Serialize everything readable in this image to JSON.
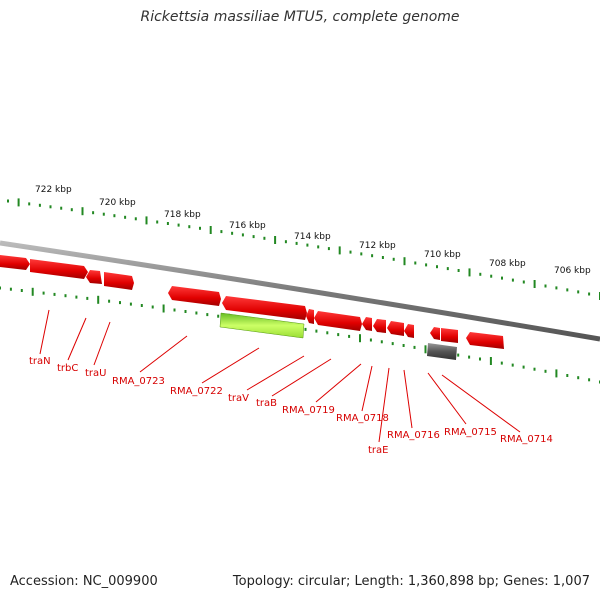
{
  "title": "Rickettsia massiliae MTU5, complete genome",
  "footer": {
    "accession": "Accession: NC_009900",
    "topology": "Topology: circular; Length: 1,360,898 bp; Genes: 1,007"
  },
  "colors": {
    "gene": "#ee0000",
    "gene_highlight": "#aaee33",
    "gene_other": "#666666",
    "backbone": "#888888",
    "ticks": "#228822",
    "label": "#dd0000"
  },
  "scale_labels": [
    "722 kbp",
    "720 kbp",
    "718 kbp",
    "716 kbp",
    "714 kbp",
    "712 kbp",
    "710 kbp",
    "708 kbp",
    "706 kbp"
  ],
  "gene_labels": [
    "traN",
    "trbC",
    "traU",
    "RMA_0723",
    "RMA_0722",
    "traV",
    "traB",
    "RMA_0719",
    "RMA_0718",
    "traE",
    "RMA_0716",
    "RMA_0715",
    "RMA_0714"
  ]
}
